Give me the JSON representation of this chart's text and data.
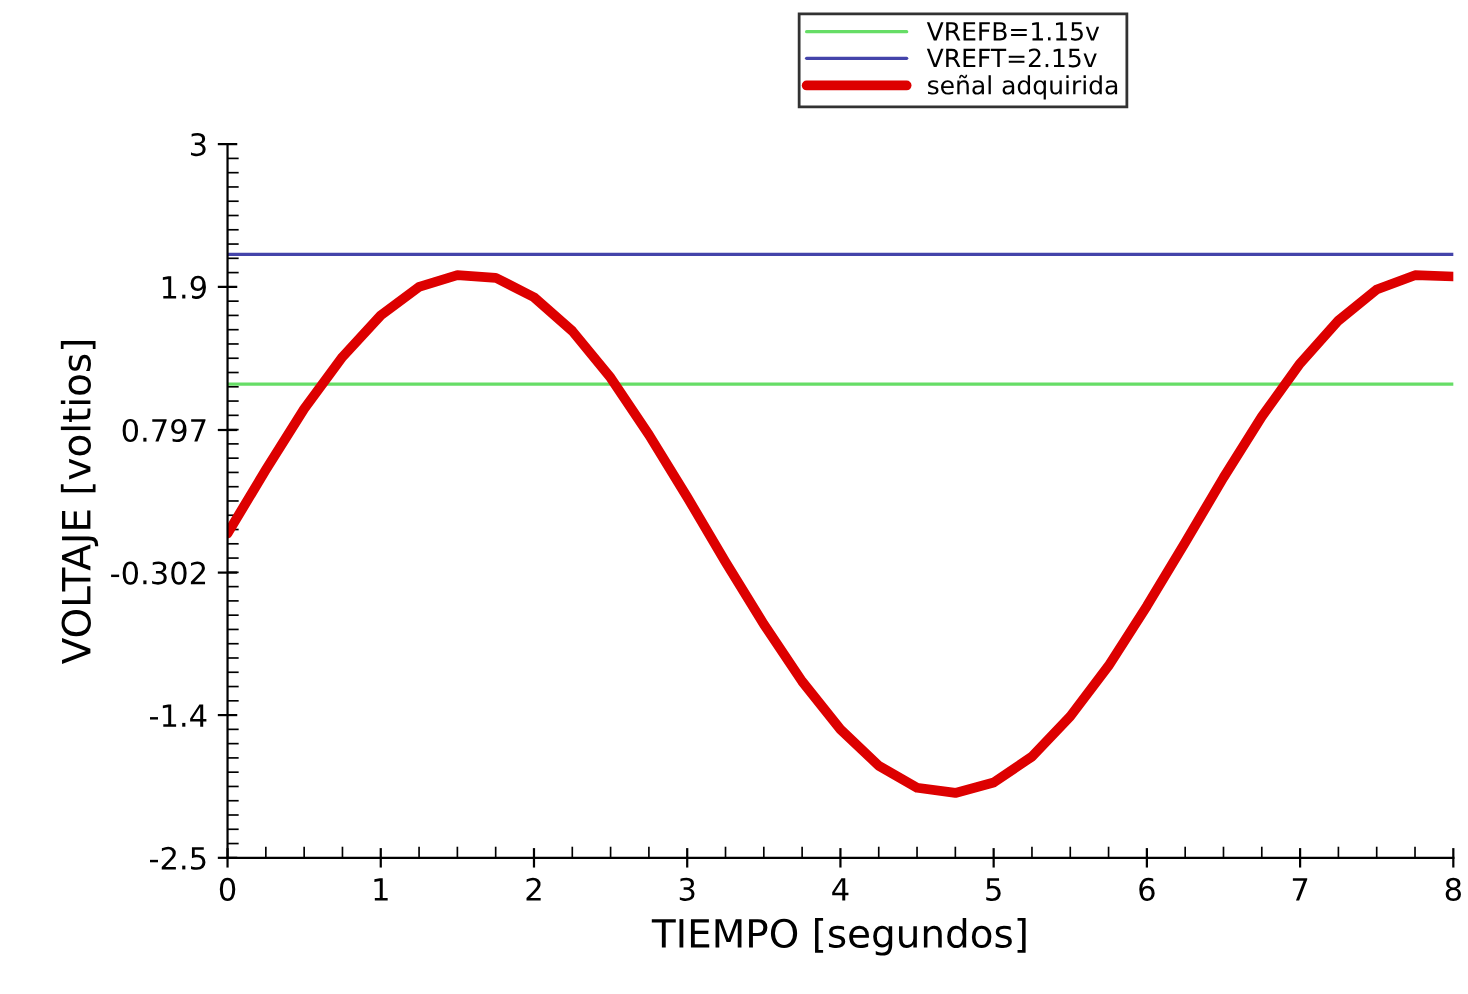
{
  "chart_data": {
    "type": "line",
    "xlabel": "TIEMPO [segundos]",
    "ylabel": "VOLTAJE [voltios]",
    "xlim": [
      0,
      8
    ],
    "xticks": [
      0,
      1,
      2,
      3,
      4,
      5,
      6,
      7,
      8
    ],
    "ylim": [
      -2.5,
      3
    ],
    "yticks": [
      3,
      1.9,
      0.797,
      -0.302,
      -1.4,
      -2.5
    ],
    "grid": false,
    "legend": "top right",
    "marker": "none",
    "line_style": "solid",
    "series": [
      {
        "name": "VREFB=1.15v",
        "color": "#66dd66",
        "x": [
          0,
          8
        ],
        "values": [
          1.15,
          1.15
        ]
      },
      {
        "name": "VREFT=2.15v",
        "color": "#4444aa",
        "x": [
          0,
          8
        ],
        "values": [
          2.15,
          2.15
        ]
      },
      {
        "name": "señal adquirida",
        "color": "#dd0000",
        "x": [
          0,
          0.25,
          0.5,
          0.75,
          1,
          1.25,
          1.5,
          1.75,
          2,
          2.25,
          2.5,
          2.75,
          3,
          3.25,
          3.5,
          3.75,
          4,
          4.25,
          4.5,
          4.75,
          5,
          5.25,
          5.5,
          5.75,
          6,
          6.25,
          6.5,
          6.75,
          7,
          7.25,
          7.5,
          7.75,
          8
        ],
        "values": [
          0.0,
          0.49,
          0.96,
          1.36,
          1.68,
          1.9,
          1.99,
          1.97,
          1.82,
          1.56,
          1.2,
          0.76,
          0.28,
          -0.22,
          -0.7,
          -1.14,
          -1.51,
          -1.79,
          -1.96,
          -2.0,
          -1.92,
          -1.72,
          -1.41,
          -1.02,
          -0.56,
          -0.07,
          0.43,
          0.9,
          1.31,
          1.64,
          1.88,
          1.99,
          1.98
        ]
      }
    ]
  }
}
